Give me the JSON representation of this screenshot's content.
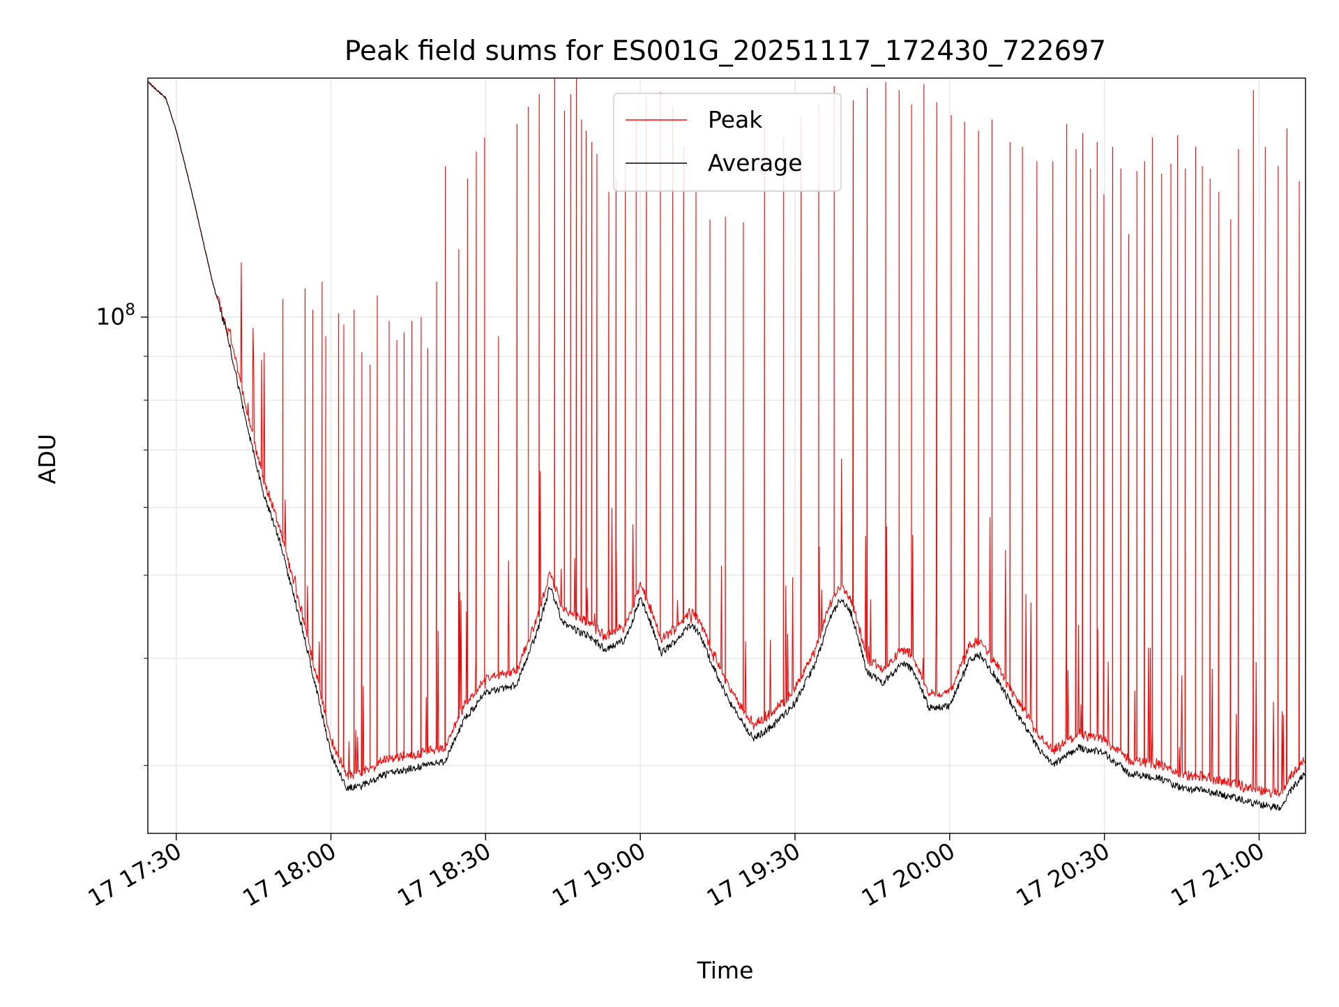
{
  "chart_data": {
    "type": "line",
    "title": "Peak field sums for ES001G_20251117_172430_722697",
    "xlabel": "Time",
    "ylabel": "ADU",
    "yscale": "log",
    "ylim": [
      25000000,
      190000000
    ],
    "xlim_minutes": [
      -5.5,
      219
    ],
    "xticks": [
      {
        "label": "17 17:30",
        "minutes": 0
      },
      {
        "label": "17 18:00",
        "minutes": 30
      },
      {
        "label": "17 18:30",
        "minutes": 60
      },
      {
        "label": "17 19:00",
        "minutes": 90
      },
      {
        "label": "17 19:30",
        "minutes": 120
      },
      {
        "label": "17 20:00",
        "minutes": 150
      },
      {
        "label": "17 20:30",
        "minutes": 180
      },
      {
        "label": "17 21:00",
        "minutes": 210
      }
    ],
    "yticks": [
      {
        "base": "10",
        "exp": "8",
        "value": 100000000
      }
    ],
    "grid": true,
    "legend_position": "upper center",
    "colors": {
      "peak": "#ff0000",
      "average": "#000000",
      "grid": "#e6e6e6"
    },
    "series": [
      {
        "name": "Peak",
        "color": "#ff0000",
        "baseline_offset_frac": 0.03,
        "spike_minutes": [
          20.7,
          25,
          26.5,
          28.3,
          29,
          31.5,
          32.5,
          34.5,
          36,
          37.6,
          39,
          41.3,
          42.8,
          44.2,
          45.7,
          47.5,
          48.8,
          50.5,
          52.2,
          54.8,
          56.5,
          58.2,
          59.8,
          62.5,
          66.1,
          68.3,
          70.4,
          73.4,
          75.3,
          76.5,
          77.6,
          78.6,
          79.5,
          80.6,
          81.6,
          83.9,
          85.3,
          87.1,
          89.2,
          91.2,
          93.9,
          96.3,
          98.4,
          100.8,
          103.5,
          106.5,
          110,
          114.1,
          117.8,
          121.2,
          124.6,
          127.6,
          131.3,
          134,
          137.6,
          140.2,
          142.6,
          145,
          147.5,
          150.3,
          152.9,
          155.6,
          158.2,
          161.7,
          164.1,
          166.9,
          170,
          172.7,
          174.5,
          175.8,
          177.3,
          178.6,
          179.9,
          181.6,
          183.2,
          184.7,
          186.3,
          187.8,
          189.3,
          191.1,
          192.9,
          194.2,
          195.7,
          197.7,
          199,
          200.5,
          202.2,
          204.5,
          206,
          208.9,
          211.2,
          213.7,
          215.4,
          217.8
        ],
        "spike_values_M": [
          105,
          108,
          102,
          110,
          95,
          101,
          98,
          102,
          91,
          88,
          106,
          99,
          94,
          96,
          99,
          100,
          92,
          110,
          150,
          120,
          145,
          156,
          162,
          95,
          168,
          176,
          182,
          190,
          174,
          182,
          190,
          170,
          165,
          160,
          155,
          140,
          145,
          150,
          170,
          181,
          183,
          176,
          158,
          140,
          130,
          131,
          129,
          167,
          162,
          171,
          177,
          186,
          179,
          185,
          188,
          184,
          177,
          187,
          178,
          172,
          169,
          165,
          170,
          160,
          158,
          152,
          152,
          168,
          157,
          164,
          149,
          160,
          139,
          158,
          149,
          125,
          148,
          152,
          162,
          147,
          151,
          163,
          149,
          158,
          150,
          145,
          140,
          130,
          157,
          184,
          158,
          150,
          166,
          144
        ]
      },
      {
        "name": "Average",
        "color": "#000000",
        "keypoints": [
          {
            "t": -5.5,
            "v_M": 188
          },
          {
            "t": -2,
            "v_M": 180
          },
          {
            "t": 0,
            "v_M": 165
          },
          {
            "t": 3,
            "v_M": 140
          },
          {
            "t": 7,
            "v_M": 110
          },
          {
            "t": 10,
            "v_M": 95
          },
          {
            "t": 13,
            "v_M": 78
          },
          {
            "t": 17,
            "v_M": 62
          },
          {
            "t": 20,
            "v_M": 55
          },
          {
            "t": 25,
            "v_M": 42
          },
          {
            "t": 30,
            "v_M": 31
          },
          {
            "t": 33,
            "v_M": 28.2
          },
          {
            "t": 36,
            "v_M": 28.4
          },
          {
            "t": 40,
            "v_M": 29.2
          },
          {
            "t": 46,
            "v_M": 29.8
          },
          {
            "t": 52,
            "v_M": 30.3
          },
          {
            "t": 56,
            "v_M": 34
          },
          {
            "t": 60,
            "v_M": 36.5
          },
          {
            "t": 66,
            "v_M": 37.2
          },
          {
            "t": 70,
            "v_M": 43
          },
          {
            "t": 72.5,
            "v_M": 48.5
          },
          {
            "t": 75,
            "v_M": 44
          },
          {
            "t": 78,
            "v_M": 43
          },
          {
            "t": 80,
            "v_M": 42.5
          },
          {
            "t": 83,
            "v_M": 41
          },
          {
            "t": 87,
            "v_M": 42
          },
          {
            "t": 90,
            "v_M": 47
          },
          {
            "t": 92,
            "v_M": 44
          },
          {
            "t": 94,
            "v_M": 40.5
          },
          {
            "t": 97,
            "v_M": 42
          },
          {
            "t": 100,
            "v_M": 44
          },
          {
            "t": 102,
            "v_M": 42
          },
          {
            "t": 105,
            "v_M": 38
          },
          {
            "t": 108,
            "v_M": 35
          },
          {
            "t": 112,
            "v_M": 32.2
          },
          {
            "t": 116,
            "v_M": 33.5
          },
          {
            "t": 120,
            "v_M": 35.5
          },
          {
            "t": 124,
            "v_M": 39.5
          },
          {
            "t": 127,
            "v_M": 45
          },
          {
            "t": 129,
            "v_M": 47
          },
          {
            "t": 131,
            "v_M": 45
          },
          {
            "t": 134,
            "v_M": 38.5
          },
          {
            "t": 137,
            "v_M": 37.5
          },
          {
            "t": 141,
            "v_M": 39.5
          },
          {
            "t": 143,
            "v_M": 38.7
          },
          {
            "t": 146,
            "v_M": 35
          },
          {
            "t": 150,
            "v_M": 35.2
          },
          {
            "t": 154,
            "v_M": 40
          },
          {
            "t": 156,
            "v_M": 40.3
          },
          {
            "t": 159,
            "v_M": 38
          },
          {
            "t": 163,
            "v_M": 34.5
          },
          {
            "t": 167,
            "v_M": 31.5
          },
          {
            "t": 170,
            "v_M": 30
          },
          {
            "t": 175,
            "v_M": 31.5
          },
          {
            "t": 180,
            "v_M": 31
          },
          {
            "t": 185,
            "v_M": 29.3
          },
          {
            "t": 190,
            "v_M": 29.1
          },
          {
            "t": 195,
            "v_M": 28.2
          },
          {
            "t": 200,
            "v_M": 28
          },
          {
            "t": 205,
            "v_M": 27.5
          },
          {
            "t": 210,
            "v_M": 27
          },
          {
            "t": 214,
            "v_M": 26.8
          },
          {
            "t": 217,
            "v_M": 28.5
          },
          {
            "t": 219,
            "v_M": 29.5
          }
        ]
      }
    ]
  }
}
